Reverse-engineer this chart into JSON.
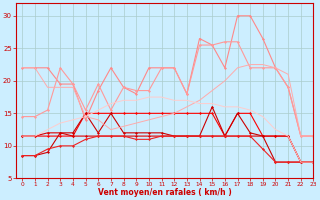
{
  "x": [
    0,
    1,
    2,
    3,
    4,
    5,
    6,
    7,
    8,
    9,
    10,
    11,
    12,
    13,
    14,
    15,
    16,
    17,
    18,
    19,
    20,
    21,
    22,
    23
  ],
  "lines": [
    {
      "y": [
        11.5,
        11.5,
        11.5,
        11.5,
        11.5,
        15.0,
        15.0,
        15.0,
        15.0,
        15.0,
        15.0,
        15.0,
        15.0,
        15.0,
        15.0,
        15.0,
        11.5,
        15.0,
        15.0,
        11.5,
        11.5,
        11.5,
        7.5,
        7.5
      ],
      "color": "#ff0000",
      "marker": "D",
      "lw": 0.8,
      "ms": 1.5
    },
    {
      "y": [
        11.5,
        11.5,
        12.0,
        12.0,
        11.5,
        11.5,
        11.5,
        11.5,
        11.5,
        11.5,
        11.5,
        11.5,
        11.5,
        11.5,
        11.5,
        11.5,
        11.5,
        11.5,
        11.5,
        11.5,
        11.5,
        11.5,
        7.5,
        7.5
      ],
      "color": "#dd0000",
      "marker": "D",
      "lw": 0.8,
      "ms": 1.5
    },
    {
      "y": [
        8.5,
        8.5,
        9.0,
        12.0,
        12.0,
        15.0,
        12.0,
        15.0,
        12.0,
        12.0,
        12.0,
        12.0,
        11.5,
        11.5,
        11.5,
        16.0,
        11.5,
        15.0,
        12.0,
        11.5,
        7.5,
        7.5,
        7.5,
        7.5
      ],
      "color": "#cc0000",
      "marker": "D",
      "lw": 0.8,
      "ms": 1.5
    },
    {
      "y": [
        8.5,
        8.5,
        9.5,
        10.0,
        10.0,
        11.0,
        11.5,
        11.5,
        11.5,
        11.0,
        11.0,
        11.5,
        11.5,
        11.5,
        11.5,
        11.5,
        11.5,
        11.5,
        11.5,
        9.5,
        7.5,
        7.5,
        7.5,
        7.5
      ],
      "color": "#ee2222",
      "marker": "D",
      "lw": 0.8,
      "ms": 1.5
    },
    {
      "y": [
        22.0,
        22.0,
        22.0,
        19.5,
        19.5,
        14.0,
        18.5,
        22.0,
        19.0,
        18.0,
        22.0,
        22.0,
        22.0,
        18.0,
        26.5,
        25.5,
        22.0,
        30.0,
        30.0,
        26.5,
        22.0,
        19.0,
        11.5,
        11.5
      ],
      "color": "#ff8888",
      "marker": "D",
      "lw": 0.8,
      "ms": 1.5
    },
    {
      "y": [
        14.5,
        14.5,
        15.5,
        22.0,
        19.5,
        15.5,
        19.5,
        15.5,
        19.0,
        18.5,
        18.5,
        22.0,
        22.0,
        18.0,
        25.5,
        25.5,
        26.0,
        26.0,
        22.0,
        22.0,
        22.0,
        19.0,
        11.5,
        11.5
      ],
      "color": "#ff9999",
      "marker": "D",
      "lw": 0.8,
      "ms": 1.5
    },
    {
      "y": [
        22.0,
        22.0,
        19.0,
        19.0,
        19.0,
        14.5,
        14.0,
        12.5,
        13.0,
        13.5,
        14.0,
        14.5,
        15.0,
        16.0,
        17.0,
        18.5,
        20.0,
        22.0,
        22.5,
        22.5,
        22.0,
        21.0,
        11.5,
        11.5
      ],
      "color": "#ffaaaa",
      "marker": null,
      "lw": 0.7,
      "ms": 0
    },
    {
      "y": [
        11.5,
        11.5,
        12.5,
        13.5,
        14.0,
        14.5,
        15.5,
        16.5,
        17.0,
        17.0,
        17.5,
        17.5,
        17.0,
        17.0,
        16.5,
        16.5,
        16.0,
        16.0,
        15.5,
        14.5,
        12.5,
        11.5,
        7.5,
        7.5
      ],
      "color": "#ffcccc",
      "marker": null,
      "lw": 0.7,
      "ms": 0
    }
  ],
  "xlabel": "Vent moyen/en rafales ( km/h )",
  "xlim": [
    -0.5,
    23
  ],
  "ylim": [
    5,
    32
  ],
  "yticks": [
    5,
    10,
    15,
    20,
    25,
    30
  ],
  "xticks": [
    0,
    1,
    2,
    3,
    4,
    5,
    6,
    7,
    8,
    9,
    10,
    11,
    12,
    13,
    14,
    15,
    16,
    17,
    18,
    19,
    20,
    21,
    22,
    23
  ],
  "bg_color": "#cceeff",
  "grid_color": "#aacccc",
  "tick_color": "#cc0000",
  "xlabel_color": "#cc0000",
  "spine_color": "#cc0000"
}
